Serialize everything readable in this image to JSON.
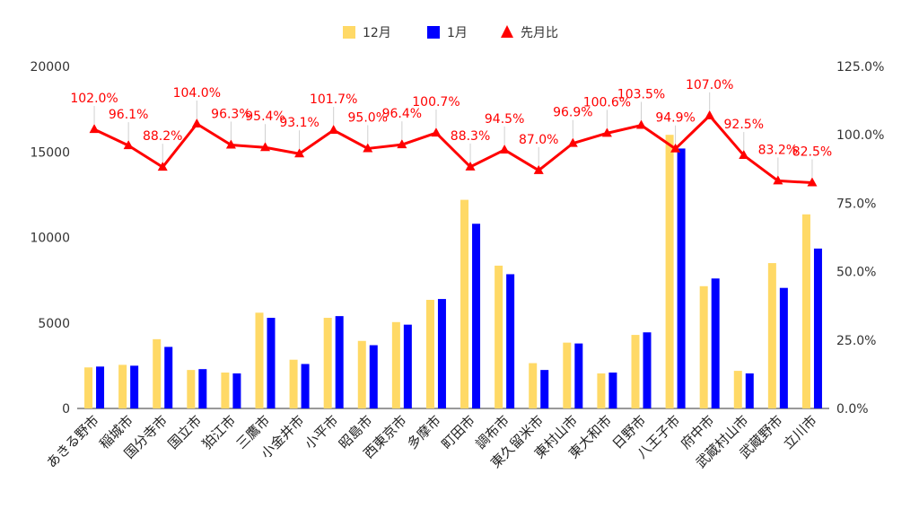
{
  "chart_data": {
    "type": "bar",
    "categories": [
      "あきる野市",
      "稲城市",
      "国分寺市",
      "国立市",
      "狛江市",
      "三鷹市",
      "小金井市",
      "小平市",
      "昭島市",
      "西東京市",
      "多摩市",
      "町田市",
      "調布市",
      "東久留米市",
      "東村山市",
      "東大和市",
      "日野市",
      "八王子市",
      "府中市",
      "武蔵村山市",
      "武蔵野市",
      "立川市"
    ],
    "series": [
      {
        "name": "12月",
        "kind": "bar",
        "axis": "left",
        "color": "#FFD966",
        "values": [
          2400,
          2550,
          4050,
          2250,
          2100,
          5600,
          2850,
          5300,
          3950,
          5050,
          6350,
          12200,
          8350,
          2650,
          3850,
          2050,
          4300,
          16000,
          7150,
          2200,
          8500,
          11350
        ]
      },
      {
        "name": "1月",
        "kind": "bar",
        "axis": "left",
        "color": "#0000FF",
        "values": [
          2450,
          2500,
          3600,
          2300,
          2050,
          5300,
          2600,
          5400,
          3700,
          4900,
          6400,
          10800,
          7850,
          2250,
          3800,
          2100,
          4450,
          15200,
          7600,
          2050,
          7050,
          9350
        ]
      },
      {
        "name": "先月比",
        "kind": "line",
        "axis": "right",
        "color": "#FF0000",
        "values": [
          102.0,
          96.1,
          88.2,
          104.0,
          96.3,
          95.4,
          93.1,
          101.7,
          95.0,
          96.4,
          100.7,
          88.3,
          94.5,
          87.0,
          96.9,
          100.6,
          103.5,
          94.9,
          107.0,
          92.5,
          83.2,
          82.5
        ],
        "labels": [
          "102.0%",
          "96.1%",
          "88.2%",
          "104.0%",
          "96.3%",
          "95.4%",
          "93.1%",
          "101.7%",
          "95.0%",
          "96.4%",
          "100.7%",
          "88.3%",
          "94.5%",
          "87.0%",
          "96.9%",
          "100.6%",
          "103.5%",
          "94.9%",
          "107.0%",
          "92.5%",
          "83.2%",
          "82.5%"
        ]
      }
    ],
    "y_left": {
      "min": 0,
      "max": 20000,
      "ticks": [
        0,
        5000,
        10000,
        15000,
        20000
      ],
      "tick_labels": [
        "0",
        "5000",
        "10000",
        "15000",
        "20000"
      ]
    },
    "y_right": {
      "min": 0,
      "max": 125,
      "ticks": [
        0,
        25,
        50,
        75,
        100,
        125
      ],
      "tick_labels": [
        "0.0%",
        "25.0%",
        "50.0%",
        "75.0%",
        "100.0%",
        "125.0%"
      ]
    },
    "legend_position": "top-center",
    "grid": false
  }
}
